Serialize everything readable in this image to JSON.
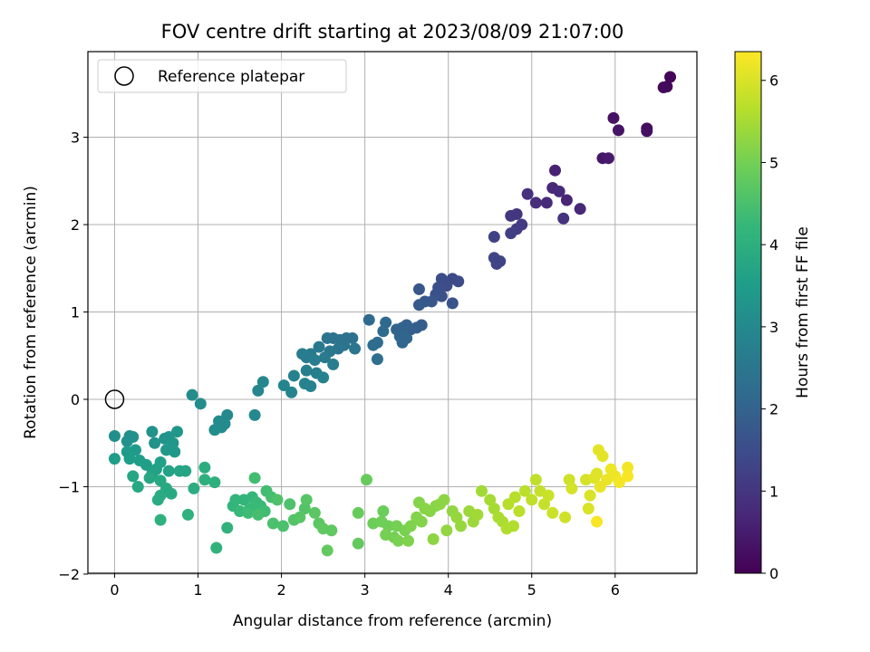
{
  "chart_data": {
    "type": "scatter",
    "title": "FOV centre drift starting at 2023/08/09 21:07:00",
    "xlabel": "Angular distance from reference (arcmin)",
    "ylabel": "Rotation from reference (arcmin)",
    "xlim": [
      -0.32,
      6.98
    ],
    "ylim": [
      -1.99,
      3.98
    ],
    "xticks": [
      0,
      1,
      2,
      3,
      4,
      5,
      6
    ],
    "yticks": [
      -2,
      -1,
      0,
      1,
      2,
      3
    ],
    "grid": true,
    "legend": {
      "label": "Reference platepar",
      "placement": "top-left"
    },
    "reference_point": {
      "x": 0,
      "y": 0
    },
    "colorbar": {
      "label": "Hours from first FF file",
      "min": 0,
      "max": 6.35,
      "ticks": [
        0,
        1,
        2,
        3,
        4,
        5,
        6
      ],
      "colormap": "viridis",
      "stops": [
        "#440154",
        "#482878",
        "#3e4989",
        "#31688e",
        "#26828e",
        "#1f9e89",
        "#35b779",
        "#6ece58",
        "#b5de2b",
        "#fde725"
      ]
    },
    "series": [
      {
        "points": [
          [
            6.66,
            3.69,
            0.05
          ],
          [
            6.62,
            3.58,
            0.1
          ],
          [
            6.58,
            3.57,
            0.15
          ],
          [
            6.38,
            3.1,
            0.2
          ],
          [
            6.38,
            3.07,
            0.25
          ],
          [
            5.98,
            3.22,
            0.3
          ],
          [
            6.04,
            3.08,
            0.35
          ],
          [
            5.85,
            2.76,
            0.4
          ],
          [
            5.92,
            2.76,
            0.45
          ],
          [
            5.28,
            2.62,
            0.6
          ],
          [
            5.42,
            2.28,
            0.65
          ],
          [
            5.58,
            2.18,
            0.7
          ],
          [
            5.25,
            2.42,
            0.7
          ],
          [
            5.33,
            2.38,
            0.75
          ],
          [
            5.18,
            2.25,
            0.8
          ],
          [
            5.05,
            2.25,
            0.85
          ],
          [
            4.95,
            2.35,
            0.9
          ],
          [
            5.38,
            2.07,
            0.95
          ],
          [
            4.82,
            2.12,
            1.0
          ],
          [
            4.75,
            2.1,
            1.05
          ],
          [
            4.88,
            2.0,
            1.1
          ],
          [
            4.82,
            1.95,
            1.15
          ],
          [
            4.75,
            1.9,
            1.2
          ],
          [
            4.55,
            1.86,
            1.25
          ],
          [
            4.58,
            1.55,
            1.3
          ],
          [
            4.55,
            1.62,
            1.35
          ],
          [
            4.62,
            1.58,
            1.3
          ],
          [
            4.05,
            1.38,
            1.4
          ],
          [
            4.12,
            1.35,
            1.45
          ],
          [
            3.98,
            1.3,
            1.5
          ],
          [
            3.92,
            1.38,
            1.5
          ],
          [
            3.88,
            1.28,
            1.55
          ],
          [
            3.85,
            1.2,
            1.6
          ],
          [
            3.92,
            1.18,
            1.6
          ],
          [
            4.05,
            1.1,
            1.65
          ],
          [
            3.8,
            1.12,
            1.7
          ],
          [
            3.65,
            1.26,
            1.7
          ],
          [
            3.72,
            1.12,
            1.75
          ],
          [
            3.65,
            1.08,
            1.8
          ],
          [
            3.68,
            0.85,
            1.85
          ],
          [
            3.62,
            0.82,
            1.9
          ],
          [
            3.55,
            0.8,
            1.9
          ],
          [
            3.5,
            0.85,
            1.95
          ],
          [
            3.45,
            0.82,
            2.0
          ],
          [
            3.38,
            0.8,
            2.0
          ],
          [
            3.42,
            0.72,
            2.05
          ],
          [
            3.5,
            0.7,
            2.05
          ],
          [
            3.45,
            0.65,
            2.1
          ],
          [
            3.25,
            0.88,
            2.15
          ],
          [
            3.05,
            0.91,
            2.2
          ],
          [
            3.22,
            0.78,
            2.2
          ],
          [
            3.15,
            0.65,
            2.25
          ],
          [
            3.1,
            0.62,
            2.25
          ],
          [
            3.15,
            0.46,
            2.3
          ],
          [
            2.85,
            0.7,
            2.35
          ],
          [
            2.78,
            0.7,
            2.35
          ],
          [
            2.7,
            0.68,
            2.4
          ],
          [
            2.62,
            0.7,
            2.4
          ],
          [
            2.55,
            0.7,
            2.45
          ],
          [
            2.75,
            0.62,
            2.45
          ],
          [
            2.88,
            0.58,
            2.5
          ],
          [
            2.68,
            0.58,
            2.5
          ],
          [
            2.58,
            0.55,
            2.55
          ],
          [
            2.45,
            0.6,
            2.55
          ],
          [
            2.52,
            0.48,
            2.6
          ],
          [
            2.35,
            0.52,
            2.6
          ],
          [
            2.25,
            0.52,
            2.65
          ],
          [
            2.3,
            0.48,
            2.65
          ],
          [
            2.4,
            0.45,
            2.7
          ],
          [
            2.62,
            0.4,
            2.7
          ],
          [
            2.3,
            0.33,
            2.75
          ],
          [
            2.42,
            0.3,
            2.75
          ],
          [
            2.5,
            0.25,
            2.8
          ],
          [
            2.15,
            0.27,
            2.8
          ],
          [
            2.28,
            0.18,
            2.85
          ],
          [
            2.35,
            0.15,
            2.85
          ],
          [
            2.03,
            0.16,
            2.9
          ],
          [
            2.12,
            0.08,
            2.9
          ],
          [
            1.78,
            0.2,
            2.95
          ],
          [
            1.72,
            0.1,
            2.95
          ],
          [
            1.68,
            -0.18,
            3.0
          ],
          [
            1.35,
            -0.18,
            3.0
          ],
          [
            1.25,
            -0.25,
            3.05
          ],
          [
            1.32,
            -0.28,
            3.05
          ],
          [
            1.28,
            -0.32,
            3.05
          ],
          [
            1.2,
            -0.35,
            3.1
          ],
          [
            1.03,
            -0.05,
            3.1
          ],
          [
            0.93,
            0.05,
            3.1
          ],
          [
            0.0,
            -0.42,
            3.15
          ],
          [
            0.18,
            -0.42,
            3.15
          ],
          [
            0.22,
            -0.43,
            3.2
          ],
          [
            0.15,
            -0.48,
            3.2
          ],
          [
            0.45,
            -0.37,
            3.25
          ],
          [
            0.48,
            -0.5,
            3.25
          ],
          [
            0.6,
            -0.45,
            3.3
          ],
          [
            0.65,
            -0.43,
            3.3
          ],
          [
            0.75,
            -0.37,
            3.35
          ],
          [
            0.7,
            -0.5,
            3.35
          ],
          [
            0.62,
            -0.58,
            3.4
          ],
          [
            0.72,
            -0.6,
            3.4
          ],
          [
            0.25,
            -0.58,
            3.45
          ],
          [
            0.15,
            -0.6,
            3.45
          ],
          [
            0.0,
            -0.68,
            3.5
          ],
          [
            0.18,
            -0.68,
            3.5
          ],
          [
            0.3,
            -0.7,
            3.55
          ],
          [
            0.38,
            -0.75,
            3.55
          ],
          [
            0.55,
            -0.72,
            3.6
          ],
          [
            0.5,
            -0.8,
            3.6
          ],
          [
            0.45,
            -0.85,
            3.65
          ],
          [
            0.65,
            -0.82,
            3.65
          ],
          [
            0.78,
            -0.82,
            3.7
          ],
          [
            0.85,
            -0.82,
            3.7
          ],
          [
            0.42,
            -0.9,
            3.75
          ],
          [
            0.22,
            -0.88,
            3.75
          ],
          [
            0.28,
            -1.0,
            3.8
          ],
          [
            0.55,
            -0.93,
            3.8
          ],
          [
            0.62,
            -1.02,
            3.85
          ],
          [
            0.68,
            -1.08,
            3.85
          ],
          [
            0.55,
            -1.1,
            3.9
          ],
          [
            0.52,
            -1.15,
            3.9
          ],
          [
            0.95,
            -1.02,
            3.95
          ],
          [
            1.08,
            -0.78,
            3.95
          ],
          [
            1.08,
            -0.92,
            4.0
          ],
          [
            1.2,
            -0.95,
            4.0
          ],
          [
            0.88,
            -1.32,
            4.05
          ],
          [
            0.55,
            -1.38,
            4.05
          ],
          [
            1.22,
            -1.7,
            4.1
          ],
          [
            1.35,
            -1.47,
            4.1
          ],
          [
            1.45,
            -1.15,
            4.15
          ],
          [
            1.55,
            -1.15,
            4.15
          ],
          [
            1.65,
            -1.12,
            4.2
          ],
          [
            1.42,
            -1.22,
            4.2
          ],
          [
            1.5,
            -1.28,
            4.25
          ],
          [
            1.62,
            -1.25,
            4.25
          ],
          [
            1.7,
            -1.18,
            4.3
          ],
          [
            1.75,
            -1.22,
            4.3
          ],
          [
            1.8,
            -1.28,
            4.35
          ],
          [
            1.6,
            -1.3,
            4.35
          ],
          [
            1.68,
            -0.9,
            4.4
          ],
          [
            1.82,
            -1.05,
            4.4
          ],
          [
            1.88,
            -1.12,
            4.45
          ],
          [
            1.72,
            -1.32,
            4.45
          ],
          [
            1.9,
            -1.42,
            4.5
          ],
          [
            2.02,
            -1.45,
            4.5
          ],
          [
            1.95,
            -1.15,
            4.55
          ],
          [
            2.1,
            -1.2,
            4.55
          ],
          [
            2.15,
            -1.38,
            4.6
          ],
          [
            2.28,
            -1.25,
            4.6
          ],
          [
            2.3,
            -1.15,
            4.65
          ],
          [
            2.22,
            -1.35,
            4.65
          ],
          [
            2.4,
            -1.3,
            4.7
          ],
          [
            2.45,
            -1.42,
            4.7
          ],
          [
            2.5,
            -1.48,
            4.75
          ],
          [
            2.6,
            -1.5,
            4.75
          ],
          [
            2.55,
            -1.73,
            4.8
          ],
          [
            2.92,
            -1.65,
            4.8
          ],
          [
            2.92,
            -1.3,
            4.85
          ],
          [
            3.02,
            -0.92,
            4.85
          ],
          [
            3.1,
            -1.42,
            4.9
          ],
          [
            3.22,
            -1.28,
            4.9
          ],
          [
            3.2,
            -1.4,
            4.95
          ],
          [
            3.28,
            -1.45,
            4.95
          ],
          [
            3.25,
            -1.55,
            5.0
          ],
          [
            3.38,
            -1.45,
            5.0
          ],
          [
            3.35,
            -1.58,
            5.0
          ],
          [
            3.4,
            -1.62,
            5.05
          ],
          [
            3.48,
            -1.5,
            5.05
          ],
          [
            3.52,
            -1.62,
            5.1
          ],
          [
            3.55,
            -1.45,
            5.1
          ],
          [
            3.62,
            -1.35,
            5.15
          ],
          [
            3.68,
            -1.4,
            5.15
          ],
          [
            3.65,
            -1.18,
            5.15
          ],
          [
            3.72,
            -1.25,
            5.2
          ],
          [
            3.78,
            -1.28,
            5.2
          ],
          [
            3.85,
            -1.22,
            5.2
          ],
          [
            3.9,
            -1.2,
            5.25
          ],
          [
            3.95,
            -1.15,
            5.25
          ],
          [
            3.82,
            -1.6,
            5.25
          ],
          [
            3.98,
            -1.5,
            5.3
          ],
          [
            4.05,
            -1.28,
            5.3
          ],
          [
            4.1,
            -1.35,
            5.35
          ],
          [
            4.15,
            -1.45,
            5.35
          ],
          [
            4.25,
            -1.28,
            5.4
          ],
          [
            4.3,
            -1.4,
            5.4
          ],
          [
            4.35,
            -1.32,
            5.45
          ],
          [
            4.4,
            -1.05,
            5.45
          ],
          [
            4.5,
            -1.15,
            5.5
          ],
          [
            4.55,
            -1.25,
            5.5
          ],
          [
            4.6,
            -1.35,
            5.55
          ],
          [
            4.65,
            -1.4,
            5.55
          ],
          [
            4.7,
            -1.48,
            5.6
          ],
          [
            4.78,
            -1.45,
            5.6
          ],
          [
            4.72,
            -1.2,
            5.65
          ],
          [
            4.8,
            -1.12,
            5.65
          ],
          [
            4.85,
            -1.28,
            5.7
          ],
          [
            4.92,
            -1.05,
            5.7
          ],
          [
            5.0,
            -1.15,
            5.75
          ],
          [
            5.05,
            -0.92,
            5.75
          ],
          [
            5.1,
            -1.05,
            5.8
          ],
          [
            5.15,
            -1.2,
            5.8
          ],
          [
            5.2,
            -1.1,
            5.85
          ],
          [
            5.25,
            -1.3,
            5.85
          ],
          [
            5.4,
            -1.35,
            5.9
          ],
          [
            5.45,
            -0.92,
            5.9
          ],
          [
            5.48,
            -1.02,
            5.95
          ],
          [
            5.65,
            -0.92,
            5.95
          ],
          [
            5.7,
            -1.1,
            6.0
          ],
          [
            5.68,
            -1.25,
            6.0
          ],
          [
            5.75,
            -0.9,
            6.05
          ],
          [
            5.78,
            -0.85,
            6.05
          ],
          [
            5.8,
            -0.58,
            6.1
          ],
          [
            5.85,
            -0.65,
            6.1
          ],
          [
            5.82,
            -1.0,
            6.15
          ],
          [
            5.9,
            -0.92,
            6.15
          ],
          [
            5.95,
            -0.8,
            6.2
          ],
          [
            6.0,
            -0.88,
            6.2
          ],
          [
            6.05,
            -0.95,
            6.25
          ],
          [
            6.15,
            -0.78,
            6.25
          ],
          [
            6.15,
            -0.88,
            6.3
          ],
          [
            5.78,
            -1.4,
            6.3
          ]
        ]
      }
    ]
  }
}
